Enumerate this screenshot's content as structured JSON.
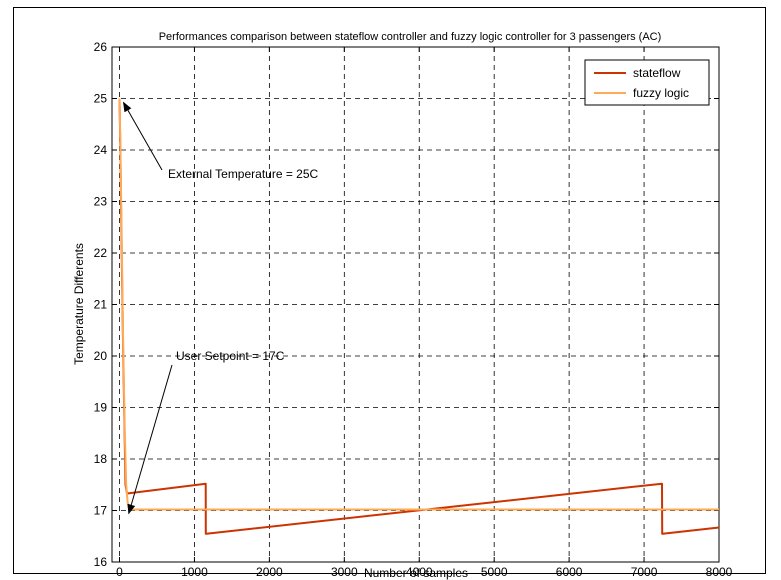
{
  "chart_data": {
    "type": "line",
    "title": "Performances comparison between stateflow controller and fuzzy logic controller for 3 passengers (AC)",
    "xlabel": "Number of samples",
    "ylabel": "Temperature Differents",
    "xlim": [
      -100,
      8000
    ],
    "ylim": [
      16,
      26
    ],
    "xticks": [
      0,
      1000,
      2000,
      3000,
      4000,
      5000,
      6000,
      7000,
      8000
    ],
    "yticks": [
      16,
      17,
      18,
      19,
      20,
      21,
      22,
      23,
      24,
      25,
      26
    ],
    "grid": true,
    "legend_position": "top-right",
    "series": [
      {
        "name": "stateflow",
        "color": "#cc3300",
        "x": [
          0,
          10,
          30,
          50,
          70,
          80,
          100,
          1150,
          1152,
          1160,
          7240,
          7242,
          7250,
          8000
        ],
        "y": [
          25,
          24.2,
          22.0,
          20.0,
          18.4,
          17.5,
          17.33,
          17.52,
          16.55,
          16.55,
          17.52,
          16.55,
          16.55,
          16.67
        ]
      },
      {
        "name": "fuzzy logic",
        "color": "#ffaa55",
        "x": [
          0,
          10,
          30,
          50,
          70,
          90,
          110,
          140,
          8000
        ],
        "y": [
          25,
          24.3,
          22.3,
          20.2,
          18.6,
          17.5,
          17.15,
          17.02,
          17.02
        ]
      }
    ],
    "annotations": [
      {
        "text": "External Temperature = 25C",
        "point": [
          0,
          25
        ]
      },
      {
        "text": "User Setpoint = 17C",
        "point": [
          70,
          17.02
        ]
      }
    ]
  }
}
